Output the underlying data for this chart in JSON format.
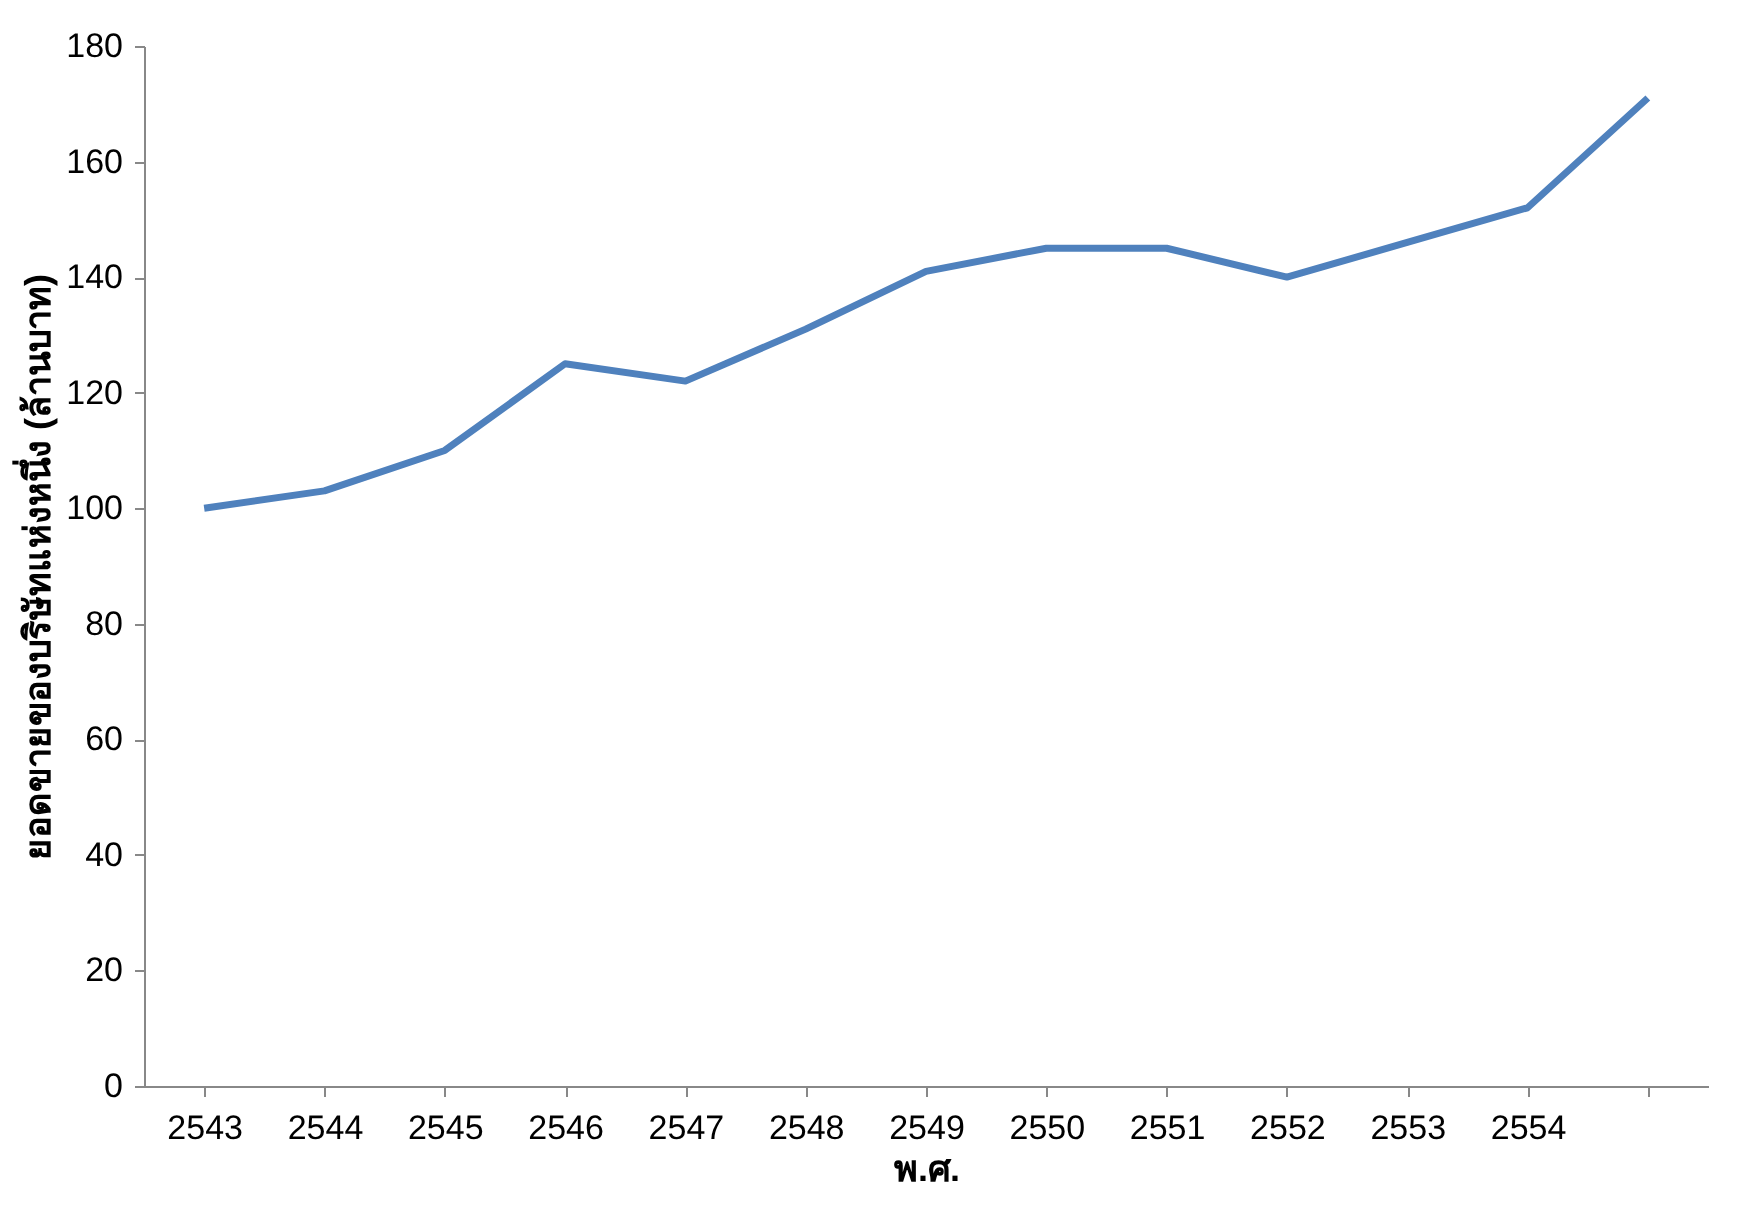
{
  "chart_data": {
    "type": "line",
    "xlabel": "พ.ศ.",
    "ylabel": "ยอดขายของบริษัทแห่งหนึ่ง (ล้านบาท)",
    "categories": [
      "2543",
      "2544",
      "2545",
      "2546",
      "2547",
      "2548",
      "2549",
      "2550",
      "2551",
      "2552",
      "2553",
      "2554",
      null
    ],
    "series": [
      {
        "color": "#4f81bd",
        "values": [
          100,
          103,
          110,
          125,
          122,
          131,
          141,
          145,
          145,
          140,
          146,
          152,
          171
        ]
      }
    ],
    "ylim": [
      0,
      180
    ],
    "yticks": [
      0,
      20,
      40,
      60,
      80,
      100,
      120,
      140,
      160,
      180
    ],
    "grid": false
  }
}
